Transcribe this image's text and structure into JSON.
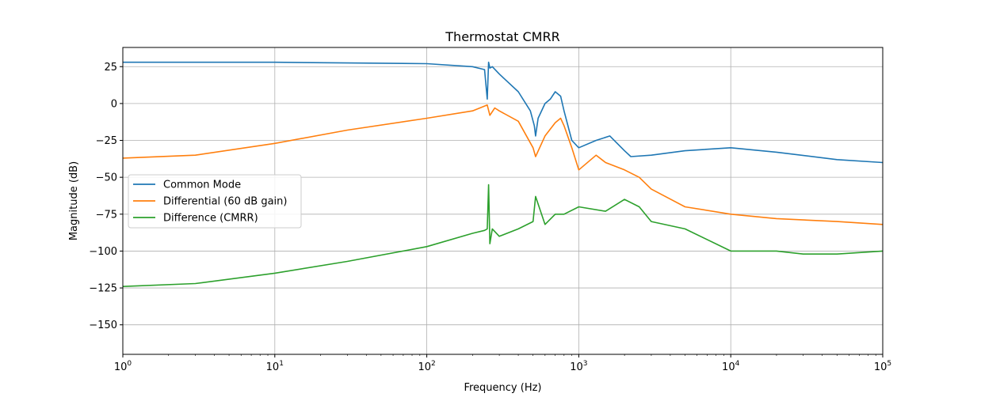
{
  "chart_data": {
    "type": "line",
    "title": "Thermostat CMRR",
    "xlabel": "Frequency (Hz)",
    "ylabel": "Magnitude (dB)",
    "xscale": "log",
    "xlim": [
      1,
      100000
    ],
    "ylim": [
      -170,
      38
    ],
    "x_ticks": [
      {
        "value": 1,
        "base": "10",
        "exp": "0"
      },
      {
        "value": 10,
        "base": "10",
        "exp": "1"
      },
      {
        "value": 100,
        "base": "10",
        "exp": "2"
      },
      {
        "value": 1000,
        "base": "10",
        "exp": "3"
      },
      {
        "value": 10000,
        "base": "10",
        "exp": "4"
      },
      {
        "value": 100000,
        "base": "10",
        "exp": "5"
      }
    ],
    "y_ticks": [
      25,
      0,
      -25,
      -50,
      -75,
      -100,
      -125,
      -150
    ],
    "y_tick_labels": [
      "25",
      "0",
      "−25",
      "−50",
      "−75",
      "−100",
      "−125",
      "−150"
    ],
    "grid": true,
    "legend_position": "center-left",
    "series": [
      {
        "name": "Common Mode",
        "color": "#1f77b4",
        "x": [
          1,
          10,
          100,
          200,
          240,
          250,
          255,
          260,
          270,
          300,
          400,
          480,
          510,
          520,
          540,
          600,
          650,
          700,
          760,
          800,
          900,
          1000,
          1300,
          1600,
          2000,
          2200,
          3000,
          5000,
          10000,
          20000,
          50000,
          100000
        ],
        "y": [
          28,
          28,
          27,
          25,
          23,
          3,
          28,
          24,
          25,
          20,
          8,
          -5,
          -15,
          -22,
          -10,
          0,
          3,
          8,
          5,
          -5,
          -25,
          -30,
          -25,
          -22,
          -32,
          -36,
          -35,
          -32,
          -30,
          -33,
          -38,
          -40
        ]
      },
      {
        "name": "Differential (60 dB gain)",
        "color": "#ff7f0e",
        "x": [
          1,
          3,
          10,
          30,
          100,
          200,
          250,
          260,
          280,
          300,
          400,
          500,
          520,
          600,
          700,
          760,
          800,
          900,
          1000,
          1300,
          1500,
          2000,
          2500,
          3000,
          5000,
          10000,
          20000,
          50000,
          100000
        ],
        "y": [
          -37,
          -35,
          -27,
          -18,
          -10,
          -5,
          -1,
          -8,
          -3,
          -5,
          -12,
          -30,
          -36,
          -22,
          -13,
          -10,
          -15,
          -30,
          -45,
          -35,
          -40,
          -45,
          -50,
          -58,
          -70,
          -75,
          -78,
          -80,
          -82
        ]
      },
      {
        "name": "Difference (CMRR)",
        "color": "#2ca02c",
        "x": [
          1,
          3,
          10,
          30,
          100,
          200,
          240,
          250,
          255,
          260,
          270,
          300,
          400,
          500,
          520,
          600,
          700,
          800,
          1000,
          1500,
          2000,
          2500,
          3000,
          5000,
          10000,
          20000,
          30000,
          50000,
          100000
        ],
        "y": [
          -124,
          -122,
          -115,
          -107,
          -97,
          -88,
          -86,
          -85,
          -55,
          -95,
          -85,
          -90,
          -85,
          -80,
          -63,
          -82,
          -75,
          -75,
          -70,
          -73,
          -65,
          -70,
          -80,
          -85,
          -100,
          -100,
          -102,
          -102,
          -100
        ]
      }
    ]
  }
}
